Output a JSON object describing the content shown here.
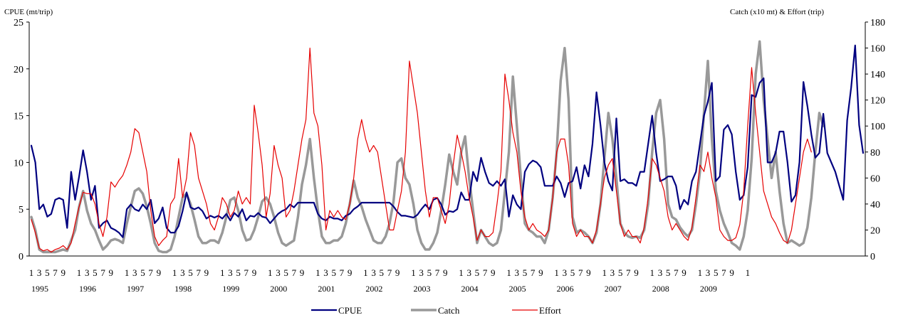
{
  "chart_data": {
    "type": "line",
    "ylabel": "CPUE (mt/trip)",
    "y2label": "Catch (x10 mt) & Effort (trip)",
    "ylim": [
      0,
      25
    ],
    "y2lim": [
      0,
      180
    ],
    "yticks": [
      "0",
      "5",
      "10",
      "15",
      "20",
      "25"
    ],
    "y2ticks": [
      "0",
      "20",
      "40",
      "60",
      "80",
      "100",
      "120",
      "140",
      "160",
      "180"
    ],
    "years": [
      "1995",
      "1996",
      "1997",
      "1998",
      "1999",
      "2000",
      "2001",
      "2002",
      "2003",
      "2004",
      "2005",
      "2006",
      "2007",
      "2008",
      "2009"
    ],
    "month_ticks": [
      "1",
      "3",
      "5",
      "7",
      "9"
    ],
    "final_month_tick": "1",
    "x_start": "1995-01",
    "legend_position": "bottom",
    "series": [
      {
        "name": "CPUE",
        "color": "#000080",
        "axis": "left",
        "values": [
          11.8,
          10,
          5,
          5.5,
          4.2,
          4.5,
          6,
          6.2,
          6,
          3,
          9,
          6,
          8.5,
          11.3,
          9,
          6,
          7.5,
          3,
          3.5,
          3.8,
          3,
          2.8,
          2.5,
          2,
          5,
          5.5,
          5,
          4.8,
          5.5,
          5,
          6,
          3.5,
          4,
          5.2,
          3,
          2.5,
          2.5,
          3.2,
          4.8,
          6.8,
          5.2,
          5,
          5.2,
          4.8,
          4,
          4.3,
          4.1,
          4.3,
          4,
          4.5,
          3.8,
          4.6,
          4.2,
          5,
          3.8,
          4.3,
          4.2,
          4.6,
          4.2,
          4.1,
          3.5,
          4,
          4.5,
          4.8,
          5,
          5.5,
          5.2,
          5.7,
          5.7,
          5.7,
          5.7,
          5.7,
          4.5,
          4,
          3.8,
          4.2,
          4,
          4,
          3.8,
          4.3,
          4.5,
          5,
          5.3,
          5.7,
          5.7,
          5.7,
          5.7,
          5.7,
          5.7,
          5.7,
          5.7,
          5.3,
          4.7,
          4.3,
          4.3,
          4.2,
          4.1,
          4.4,
          5,
          5.5,
          5,
          6,
          6.2,
          5.5,
          4.4,
          4.8,
          4.7,
          5,
          6.8,
          6,
          6,
          9,
          8,
          10.5,
          9,
          7.8,
          7.5,
          8,
          7.5,
          8.2,
          4.2,
          6.5,
          5.5,
          5,
          9,
          9.8,
          10.2,
          10,
          9.5,
          7.5,
          7.5,
          7.5,
          8.5,
          7.8,
          6.3,
          7.8,
          8,
          9.5,
          7.2,
          9.7,
          8.5,
          12,
          17.5,
          14,
          10,
          8,
          7,
          14.7,
          8,
          8.2,
          7.8,
          7.8,
          7.5,
          9,
          9,
          12,
          15,
          11,
          8,
          8.2,
          8.5,
          8.5,
          7.5,
          5,
          6,
          5.5,
          8,
          9,
          12,
          15,
          16.5,
          18.5,
          8,
          8.5,
          13.5,
          14,
          13,
          9,
          6,
          6.5,
          9.5,
          17.2,
          17,
          18.5,
          19,
          10,
          10,
          11,
          13.3,
          13.3,
          10,
          5.8,
          6.5,
          10,
          18.6,
          16,
          13,
          10.5,
          11,
          15.2,
          11,
          10,
          9,
          7.5,
          6,
          14.5,
          18,
          22.5,
          14,
          11
        ]
      },
      {
        "name": "Catch",
        "color": "#999999",
        "axis": "right",
        "values": [
          30,
          20,
          5,
          3,
          3,
          3,
          3,
          4,
          5,
          4,
          12,
          20,
          38,
          50,
          35,
          25,
          20,
          12,
          5,
          8,
          12,
          13,
          12,
          10,
          25,
          38,
          50,
          52,
          48,
          38,
          25,
          10,
          4,
          3,
          3,
          5,
          15,
          30,
          45,
          48,
          40,
          28,
          15,
          10,
          10,
          12,
          12,
          10,
          18,
          30,
          43,
          45,
          35,
          20,
          12,
          13,
          20,
          30,
          42,
          45,
          40,
          30,
          18,
          10,
          8,
          10,
          12,
          30,
          55,
          70,
          90,
          60,
          35,
          15,
          10,
          10,
          12,
          12,
          15,
          25,
          40,
          58,
          45,
          38,
          28,
          20,
          12,
          10,
          10,
          15,
          25,
          42,
          72,
          75,
          60,
          55,
          40,
          20,
          10,
          5,
          5,
          10,
          18,
          35,
          55,
          78,
          65,
          55,
          80,
          92,
          60,
          35,
          10,
          20,
          15,
          10,
          8,
          10,
          20,
          50,
          80,
          138,
          100,
          60,
          25,
          20,
          18,
          15,
          15,
          10,
          20,
          45,
          80,
          135,
          160,
          120,
          30,
          18,
          20,
          18,
          15,
          10,
          18,
          40,
          75,
          110,
          90,
          60,
          25,
          18,
          15,
          14,
          15,
          14,
          20,
          40,
          80,
          110,
          120,
          90,
          40,
          30,
          28,
          22,
          18,
          15,
          20,
          40,
          65,
          110,
          150,
          90,
          50,
          35,
          25,
          18,
          10,
          8,
          5,
          15,
          35,
          75,
          140,
          165,
          120,
          90,
          60,
          80,
          50,
          25,
          10,
          12,
          10,
          8,
          10,
          22,
          45,
          80,
          110,
          100
        ]
      },
      {
        "name": "Effort",
        "color": "#e60000",
        "axis": "right",
        "values": [
          28,
          18,
          6,
          4,
          5,
          3,
          5,
          6,
          8,
          5,
          10,
          25,
          38,
          49,
          48,
          48,
          40,
          25,
          15,
          30,
          57,
          53,
          58,
          62,
          70,
          80,
          98,
          95,
          80,
          65,
          35,
          15,
          8,
          12,
          15,
          40,
          45,
          75,
          45,
          60,
          95,
          85,
          60,
          50,
          40,
          25,
          20,
          30,
          45,
          40,
          30,
          35,
          50,
          40,
          45,
          40,
          116,
          95,
          70,
          30,
          48,
          85,
          70,
          60,
          30,
          35,
          50,
          70,
          90,
          105,
          160,
          110,
          100,
          70,
          20,
          35,
          30,
          35,
          30,
          28,
          40,
          60,
          90,
          105,
          90,
          80,
          85,
          80,
          60,
          40,
          20,
          20,
          35,
          50,
          80,
          150,
          130,
          110,
          80,
          50,
          30,
          45,
          45,
          35,
          25,
          40,
          70,
          93,
          80,
          65,
          45,
          30,
          12,
          20,
          15,
          15,
          18,
          40,
          65,
          140,
          120,
          95,
          80,
          50,
          30,
          20,
          25,
          20,
          18,
          15,
          20,
          45,
          80,
          90,
          90,
          70,
          25,
          15,
          20,
          15,
          15,
          10,
          20,
          40,
          60,
          70,
          75,
          50,
          25,
          15,
          20,
          15,
          15,
          10,
          22,
          45,
          75,
          70,
          60,
          50,
          30,
          20,
          25,
          20,
          15,
          12,
          22,
          45,
          70,
          65,
          80,
          60,
          45,
          20,
          15,
          12,
          12,
          14,
          24,
          50,
          100,
          145,
          110,
          80,
          50,
          40,
          30,
          25,
          18,
          12,
          10,
          20,
          40,
          60,
          80,
          90,
          80
        ]
      }
    ]
  }
}
